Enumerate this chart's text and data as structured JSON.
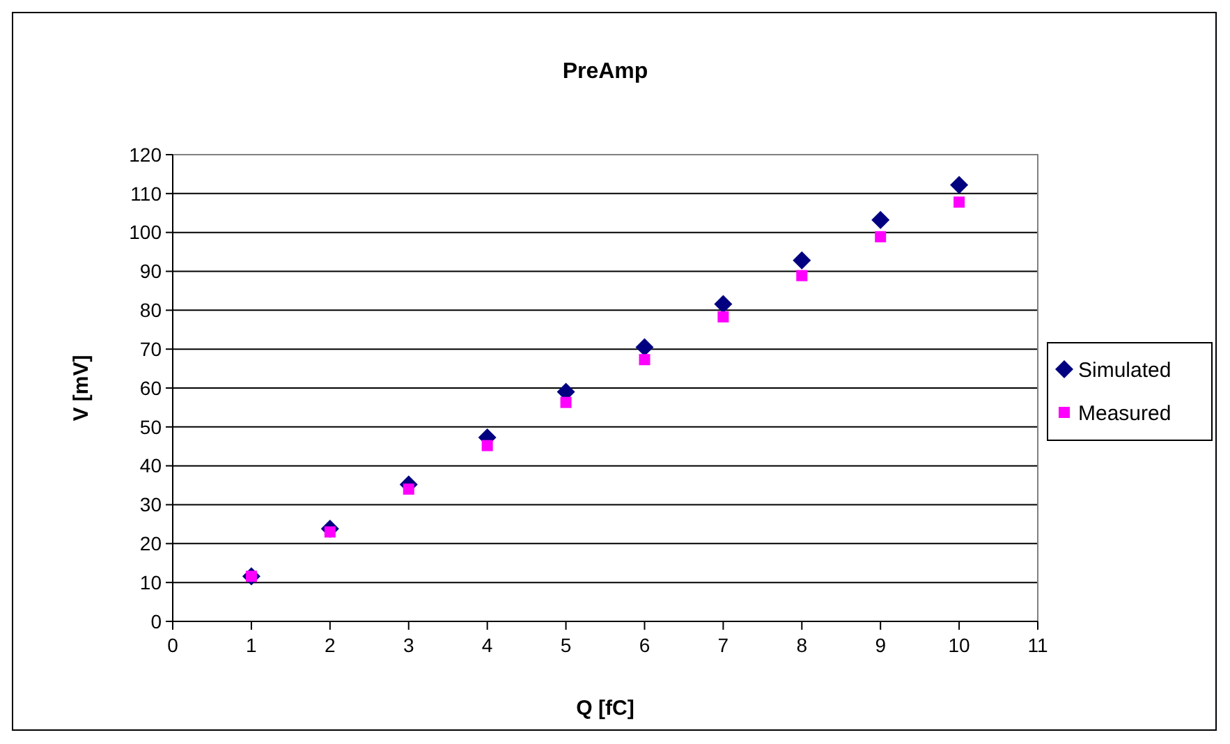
{
  "chart_data": {
    "type": "scatter",
    "title": "PreAmp",
    "xlabel": "Q [fC]",
    "ylabel": "V [mV]",
    "x": [
      1,
      2,
      3,
      4,
      5,
      6,
      7,
      8,
      9,
      10
    ],
    "series": [
      {
        "name": "Simulated",
        "color": "#000080",
        "marker": "diamond",
        "values": [
          11.6,
          23.8,
          35.2,
          47.3,
          59.0,
          70.5,
          81.6,
          92.8,
          103.2,
          112.2
        ]
      },
      {
        "name": "Measured",
        "color": "#ff00ff",
        "marker": "square",
        "values": [
          11.6,
          23.0,
          34.0,
          45.2,
          56.3,
          67.3,
          78.3,
          88.9,
          98.9,
          107.8
        ]
      }
    ],
    "xlim": [
      0,
      11
    ],
    "xticks": [
      0,
      1,
      2,
      3,
      4,
      5,
      6,
      7,
      8,
      9,
      10,
      11
    ],
    "ylim": [
      0,
      120
    ],
    "yticks": [
      0,
      10,
      20,
      30,
      40,
      50,
      60,
      70,
      80,
      90,
      100,
      110,
      120
    ],
    "grid": "y",
    "legend": "right"
  }
}
